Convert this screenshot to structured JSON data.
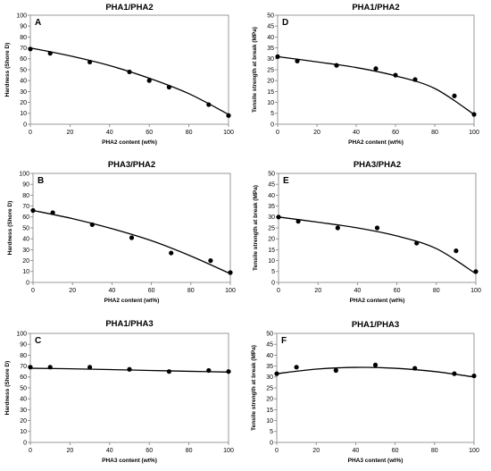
{
  "chart_data": [
    {
      "type": "scatter",
      "letter": "A",
      "title": "PHA1/PHA2",
      "xlabel": "PHA2 content (wt%)",
      "ylabel": "Hardness (Shore D)",
      "xlim": [
        0,
        100
      ],
      "ylim": [
        0,
        100
      ],
      "xticks": [
        0,
        20,
        40,
        60,
        80,
        100
      ],
      "yticks": [
        0,
        10,
        20,
        30,
        40,
        50,
        60,
        70,
        80,
        90,
        100
      ],
      "x": [
        0,
        10,
        30,
        50,
        60,
        70,
        90,
        100
      ],
      "y": [
        69,
        65,
        57,
        48,
        40,
        34,
        18,
        8
      ],
      "trendline": [
        [
          0,
          70
        ],
        [
          20,
          62.7
        ],
        [
          40,
          53.8
        ],
        [
          60,
          42.2
        ],
        [
          80,
          28
        ],
        [
          100,
          9
        ]
      ],
      "legend": "none",
      "grid": false
    },
    {
      "type": "scatter",
      "letter": "D",
      "title": "PHA1/PHA2",
      "xlabel": "PHA2 content (wt%)",
      "ylabel": "Tensile strength at break (MPa)",
      "xlim": [
        0,
        100
      ],
      "ylim": [
        0,
        50
      ],
      "xticks": [
        0,
        20,
        40,
        60,
        80,
        100
      ],
      "yticks": [
        0,
        5,
        10,
        15,
        20,
        25,
        30,
        35,
        40,
        45,
        50
      ],
      "x": [
        0,
        10,
        30,
        50,
        60,
        70,
        90,
        100
      ],
      "y": [
        31,
        29,
        27,
        25.5,
        22.5,
        20.5,
        13,
        4.5
      ],
      "trendline": [
        [
          0,
          31
        ],
        [
          20,
          28.6
        ],
        [
          40,
          26
        ],
        [
          60,
          22.2
        ],
        [
          80,
          16.4
        ],
        [
          100,
          4.5
        ]
      ],
      "legend": "none",
      "grid": false
    },
    {
      "type": "scatter",
      "letter": "B",
      "title": "PHA3/PHA2",
      "xlabel": "PHA2 content (wt%)",
      "ylabel": "Hardness (Shore D)",
      "xlim": [
        0,
        100
      ],
      "ylim": [
        0,
        100
      ],
      "xticks": [
        0,
        20,
        40,
        60,
        80,
        100
      ],
      "yticks": [
        0,
        10,
        20,
        30,
        40,
        50,
        60,
        70,
        80,
        90,
        100
      ],
      "x": [
        0,
        10,
        30,
        50,
        70,
        90,
        100
      ],
      "y": [
        66,
        64,
        53,
        41,
        27,
        20,
        9
      ],
      "trendline": [
        [
          0,
          66
        ],
        [
          20,
          58.5
        ],
        [
          40,
          49.3
        ],
        [
          60,
          38.3
        ],
        [
          80,
          24.2
        ],
        [
          100,
          8
        ]
      ],
      "legend": "none",
      "grid": false
    },
    {
      "type": "scatter",
      "letter": "E",
      "title": "PHA3/PHA2",
      "xlabel": "PHA2 content (wt%)",
      "ylabel": "Tensile strength at break (MPa)",
      "xlim": [
        0,
        100
      ],
      "ylim": [
        0,
        50
      ],
      "xticks": [
        0,
        20,
        40,
        60,
        80,
        100
      ],
      "yticks": [
        0,
        5,
        10,
        15,
        20,
        25,
        30,
        35,
        40,
        45,
        50
      ],
      "x": [
        0,
        10,
        30,
        50,
        70,
        90,
        100
      ],
      "y": [
        30,
        28,
        25,
        25,
        18,
        14.5,
        5
      ],
      "trendline": [
        [
          0,
          30
        ],
        [
          20,
          27.6
        ],
        [
          40,
          25
        ],
        [
          60,
          21.3
        ],
        [
          80,
          15.5
        ],
        [
          100,
          4
        ]
      ],
      "legend": "none",
      "grid": false
    },
    {
      "type": "scatter",
      "letter": "C",
      "title": "PHA1/PHA3",
      "xlabel": "PHA3 content (wt%)",
      "ylabel": "Hardness (Shore D)",
      "xlim": [
        0,
        100
      ],
      "ylim": [
        0,
        100
      ],
      "xticks": [
        0,
        20,
        40,
        60,
        80,
        100
      ],
      "yticks": [
        0,
        10,
        20,
        30,
        40,
        50,
        60,
        70,
        80,
        90,
        100
      ],
      "x": [
        0,
        10,
        30,
        50,
        70,
        90,
        100
      ],
      "y": [
        69,
        69,
        69,
        67,
        65,
        66,
        65
      ],
      "trendline": [
        [
          0,
          68
        ],
        [
          20,
          67.5
        ],
        [
          40,
          66.8
        ],
        [
          60,
          66
        ],
        [
          80,
          65.2
        ],
        [
          100,
          64.5
        ]
      ],
      "legend": "none",
      "grid": false
    },
    {
      "type": "scatter",
      "letter": "F",
      "title": "PHA1/PHA3",
      "xlabel": "PHA3 content (wt%)",
      "ylabel": "Tensile strength at break (MPa)",
      "xlim": [
        0,
        100
      ],
      "ylim": [
        0,
        50
      ],
      "xticks": [
        0,
        20,
        40,
        60,
        80,
        100
      ],
      "yticks": [
        0,
        5,
        10,
        15,
        20,
        25,
        30,
        35,
        40,
        45,
        50
      ],
      "x": [
        0,
        10,
        30,
        50,
        70,
        90,
        100
      ],
      "y": [
        31.5,
        34.5,
        33,
        35.5,
        34,
        31.5,
        30.5
      ],
      "trendline": [
        [
          0,
          31.5
        ],
        [
          20,
          33.6
        ],
        [
          40,
          34.4
        ],
        [
          60,
          34
        ],
        [
          80,
          32.5
        ],
        [
          100,
          30
        ]
      ],
      "legend": "none",
      "grid": false
    }
  ]
}
